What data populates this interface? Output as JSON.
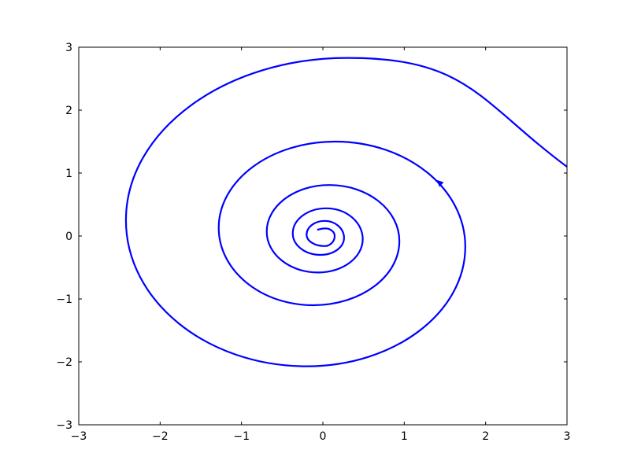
{
  "chart_data": {
    "type": "line",
    "title": "",
    "xlabel": "",
    "ylabel": "",
    "xlim": [
      -3,
      3
    ],
    "ylim": [
      -3,
      3
    ],
    "xticks": [
      -3,
      -2,
      -1,
      0,
      1,
      2,
      3
    ],
    "yticks": [
      -3,
      -2,
      -1,
      0,
      1,
      2,
      3
    ],
    "xtick_labels": [
      "−3",
      "−2",
      "−1",
      "0",
      "1",
      "2",
      "3"
    ],
    "ytick_labels": [
      "−3",
      "−2",
      "−1",
      "0",
      "1",
      "2",
      "3"
    ],
    "grid": false,
    "line_color": "#0000ff",
    "direction": "counterclockwise, spiralling inward",
    "trajectory": {
      "start": [
        3.0,
        1.1
      ],
      "extrema": [
        [
          0.3,
          2.83
        ],
        [
          -2.42,
          0.25
        ],
        [
          -0.2,
          -2.07
        ],
        [
          1.75,
          -0.17
        ],
        [
          0.15,
          1.5
        ],
        [
          -1.28,
          0.13
        ],
        [
          -0.12,
          -1.1
        ],
        [
          0.94,
          -0.08
        ],
        [
          0.08,
          0.81
        ],
        [
          -0.69,
          0.07
        ],
        [
          -0.06,
          -0.58
        ],
        [
          0.49,
          -0.05
        ],
        [
          0.04,
          0.44
        ],
        [
          -0.37,
          0.04
        ],
        [
          -0.03,
          -0.3
        ],
        [
          0.26,
          -0.03
        ],
        [
          0.02,
          0.24
        ],
        [
          -0.2,
          0.02
        ],
        [
          0.02,
          -0.16
        ],
        [
          0.145,
          0.0
        ],
        [
          0.03,
          0.12
        ]
      ],
      "end": [
        -0.07,
        0.1
      ]
    },
    "arrow": {
      "at": [
        1.43,
        0.85
      ],
      "toward": [
        1.3,
        1.0
      ]
    }
  }
}
